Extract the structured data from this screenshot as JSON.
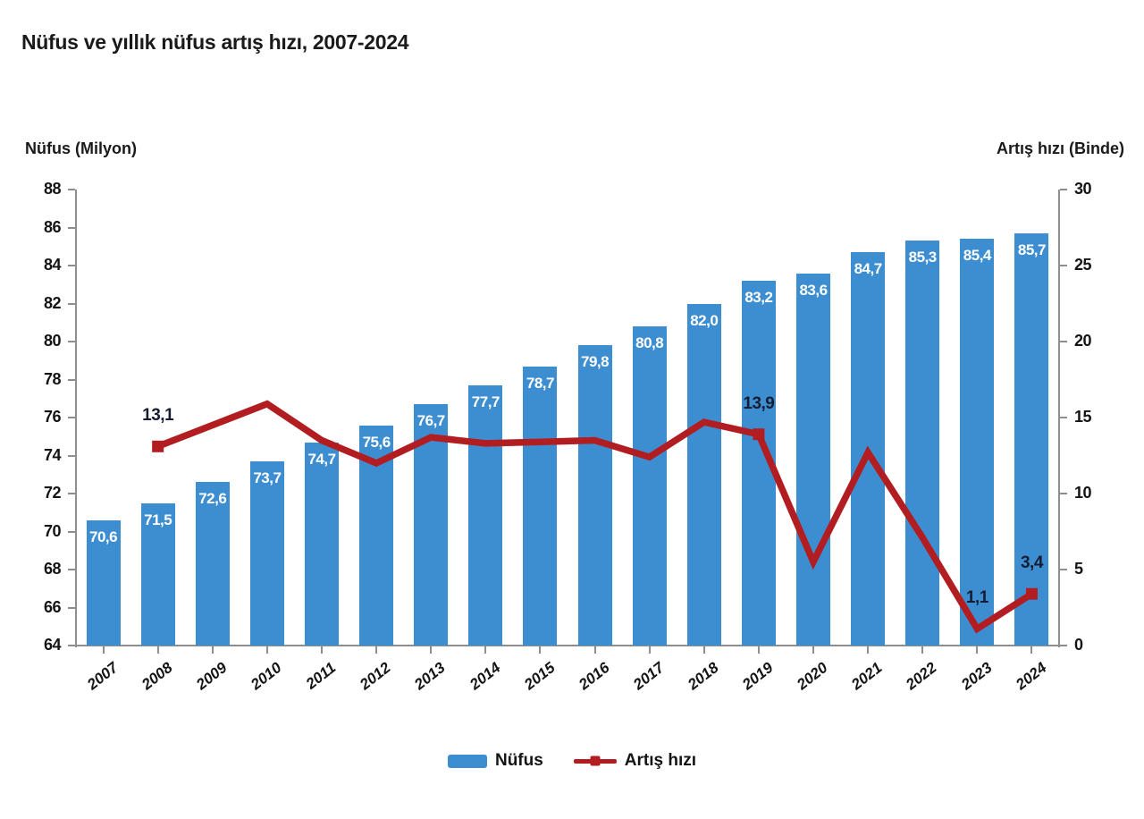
{
  "chart_data": {
    "type": "bar+line",
    "title": "Nüfus ve yıllık nüfus artış hızı, 2007-2024",
    "categories": [
      "2007",
      "2008",
      "2009",
      "2010",
      "2011",
      "2012",
      "2013",
      "2014",
      "2015",
      "2016",
      "2017",
      "2018",
      "2019",
      "2020",
      "2021",
      "2022",
      "2023",
      "2024"
    ],
    "series": [
      {
        "name": "Nüfus",
        "type": "bar",
        "axis": "left",
        "color": "#3d8ed0",
        "values": [
          70.6,
          71.5,
          72.6,
          73.7,
          74.7,
          75.6,
          76.7,
          77.7,
          78.7,
          79.8,
          80.8,
          82.0,
          83.2,
          83.6,
          84.7,
          85.3,
          85.4,
          85.7
        ],
        "bar_labels": [
          "70,6",
          "71,5",
          "72,6",
          "73,7",
          "74,7",
          "75,6",
          "76,7",
          "77,7",
          "78,7",
          "79,8",
          "80,8",
          "82,0",
          "83,2",
          "83,6",
          "84,7",
          "85,3",
          "85,4",
          "85,7"
        ]
      },
      {
        "name": "Artış hızı",
        "type": "line",
        "axis": "right",
        "color": "#b21d21",
        "values": [
          null,
          13.1,
          14.5,
          15.9,
          13.5,
          12.0,
          13.7,
          13.3,
          13.4,
          13.5,
          12.4,
          14.7,
          13.9,
          5.5,
          12.7,
          7.1,
          1.1,
          3.4
        ],
        "point_labels": [
          {
            "category": "2008",
            "text": "13,1"
          },
          {
            "category": "2019",
            "text": "13,9"
          },
          {
            "category": "2023",
            "text": "1,1"
          },
          {
            "category": "2024",
            "text": "3,4"
          }
        ],
        "marker_categories": [
          "2008",
          "2019",
          "2024"
        ]
      }
    ],
    "left_axis": {
      "title": "Nüfus (Milyon)",
      "min": 64,
      "max": 88,
      "step": 2
    },
    "right_axis": {
      "title": "Artış hızı (Binde)",
      "min": 0,
      "max": 30,
      "step": 5
    },
    "legend": [
      {
        "label": "Nüfus",
        "swatch": "bar",
        "color": "#3d8ed0"
      },
      {
        "label": "Artış hızı",
        "swatch": "line",
        "color": "#b21d21"
      }
    ],
    "grid": "off",
    "legend_position": "bottom-center"
  }
}
